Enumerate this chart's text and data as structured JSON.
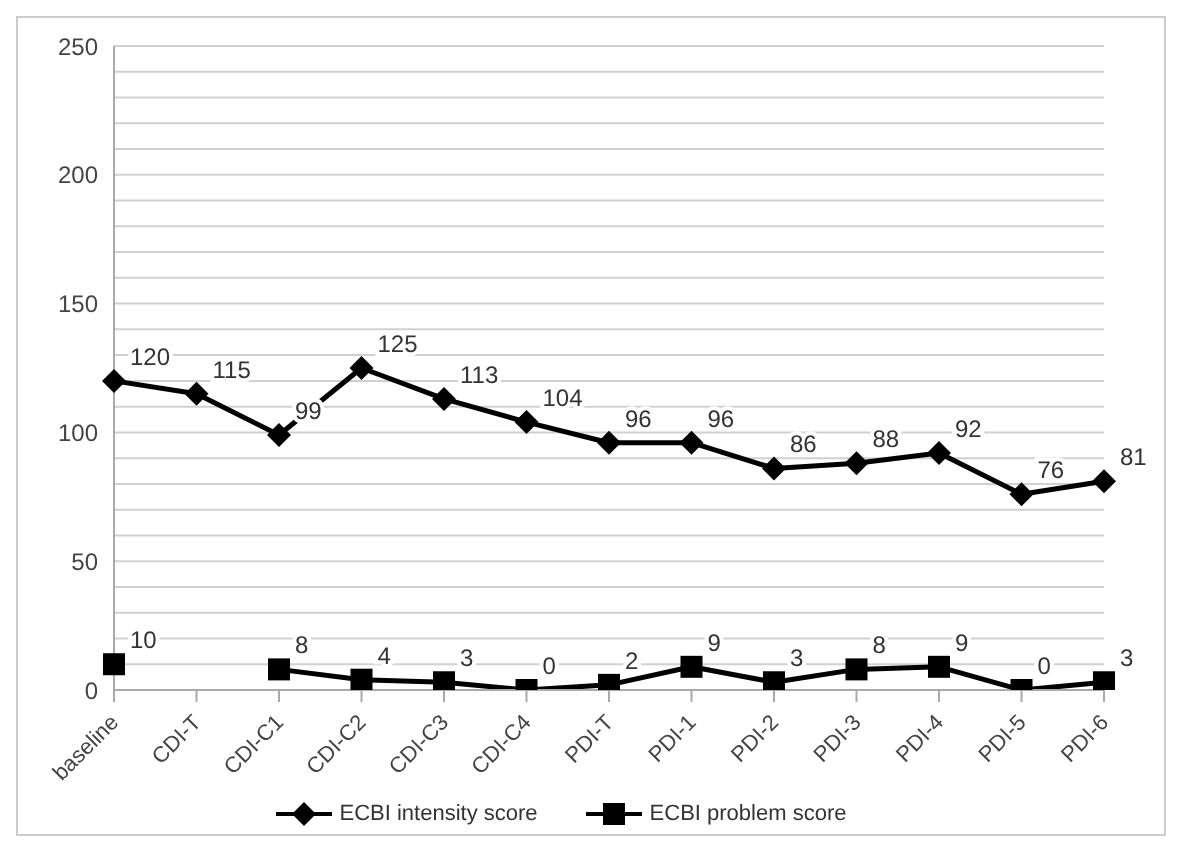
{
  "chart_data": {
    "type": "line",
    "categories": [
      "baseline",
      "CDI-T",
      "CDI-C1",
      "CDI-C2",
      "CDI-C3",
      "CDI-C4",
      "PDI-T",
      "PDI-1",
      "PDI-2",
      "PDI-3",
      "PDI-4",
      "PDI-5",
      "PDI-6"
    ],
    "series": [
      {
        "name": "ECBI intensity score",
        "color": "#000000",
        "marker": "diamond",
        "values": [
          120,
          115,
          99,
          125,
          113,
          104,
          96,
          96,
          86,
          88,
          92,
          76,
          81
        ]
      },
      {
        "name": "ECBI problem score",
        "color": "#000000",
        "marker": "square",
        "values": [
          10,
          null,
          8,
          4,
          3,
          0,
          2,
          9,
          3,
          8,
          9,
          0,
          3
        ]
      }
    ],
    "ylim": [
      0,
      250
    ],
    "yticks": [
      0,
      {
        "value": 10,
        "label": null
      },
      {
        "value": 20,
        "label": null
      },
      {
        "value": 30,
        "label": null
      },
      {
        "value": 40,
        "label": null
      },
      50,
      {
        "value": 60,
        "label": null
      },
      {
        "value": 70,
        "label": null
      },
      {
        "value": 80,
        "label": null
      },
      {
        "value": 90,
        "label": null
      },
      100,
      {
        "value": 110,
        "label": null
      },
      {
        "value": 120,
        "label": null
      },
      {
        "value": 130,
        "label": null
      },
      {
        "value": 140,
        "label": null
      },
      150,
      {
        "value": 160,
        "label": null
      },
      {
        "value": 170,
        "label": null
      },
      {
        "value": 180,
        "label": null
      },
      {
        "value": 190,
        "label": null
      },
      200,
      {
        "value": 210,
        "label": null
      },
      {
        "value": 220,
        "label": null
      },
      {
        "value": 230,
        "label": null
      },
      {
        "value": 240,
        "label": null
      },
      250
    ],
    "grid": "y",
    "legend": "bottom",
    "data_labels": true,
    "line_style": "solid"
  }
}
